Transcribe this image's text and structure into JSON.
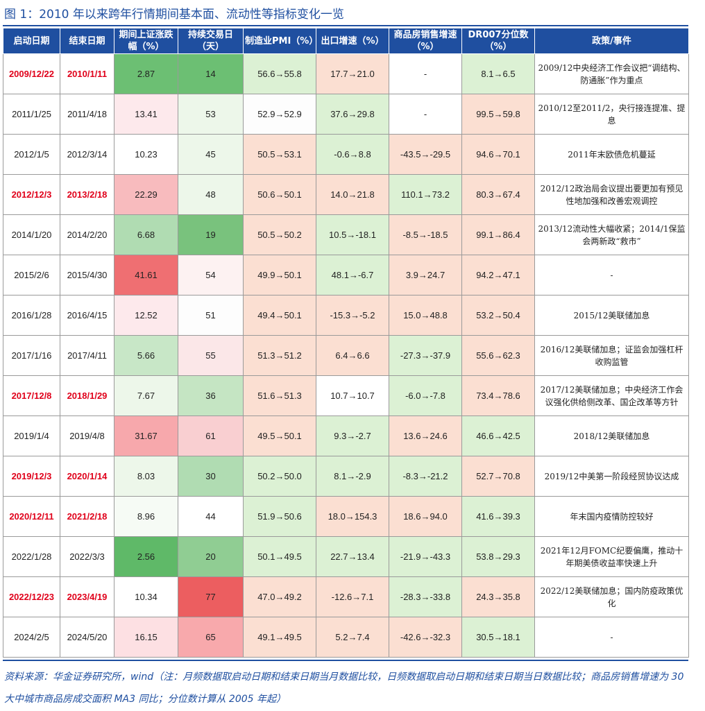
{
  "title": "图 1：2010 年以来跨年行情期间基本面、流动性等指标变化一览",
  "headers": [
    "启动日期",
    "结束日期",
    "期间上证涨跌幅（%）",
    "持续交易日（天）",
    "制造业PMI（%）",
    "出口增速（%）",
    "商品房销售增速（%）",
    "DR007分位数（%）",
    "政策/事件"
  ],
  "rows": [
    {
      "start": "2009/12/22",
      "end": "2010/1/11",
      "chg": "2.87",
      "days": "14",
      "pmi": "56.6→55.8",
      "export": "17.7→21.0",
      "house": "-",
      "dr007": "8.1→6.5",
      "policy": "2009/12中央经济工作会议把“调结构、防通胀”作为重点",
      "highlight": true
    },
    {
      "start": "2011/1/25",
      "end": "2011/4/18",
      "chg": "13.41",
      "days": "53",
      "pmi": "52.9→52.9",
      "export": "37.6→29.8",
      "house": "-",
      "dr007": "99.5→59.8",
      "policy": "2010/12至2011/2，央行接连提准、提息",
      "highlight": false
    },
    {
      "start": "2012/1/5",
      "end": "2012/3/14",
      "chg": "10.23",
      "days": "45",
      "pmi": "50.5→53.1",
      "export": "-0.6→8.8",
      "house": "-43.5→-29.5",
      "dr007": "94.6→70.1",
      "policy": "2011年末欧债危机蔓延",
      "highlight": false
    },
    {
      "start": "2012/12/3",
      "end": "2013/2/18",
      "chg": "22.29",
      "days": "48",
      "pmi": "50.6→50.1",
      "export": "14.0→21.8",
      "house": "110.1→73.2",
      "dr007": "80.3→67.4",
      "policy": "2012/12政治局会议提出要更加有预见性地加强和改善宏观调控",
      "highlight": true
    },
    {
      "start": "2014/1/20",
      "end": "2014/2/20",
      "chg": "6.68",
      "days": "19",
      "pmi": "50.5→50.2",
      "export": "10.5→-18.1",
      "house": "-8.5→-18.5",
      "dr007": "99.1→86.4",
      "policy": "2013/12流动性大幅收紧；2014/1保监会两新政“救市”",
      "highlight": false
    },
    {
      "start": "2015/2/6",
      "end": "2015/4/30",
      "chg": "41.61",
      "days": "54",
      "pmi": "49.9→50.1",
      "export": "48.1→-6.7",
      "house": "3.9→24.7",
      "dr007": "94.2→47.1",
      "policy": "-",
      "highlight": false
    },
    {
      "start": "2016/1/28",
      "end": "2016/4/15",
      "chg": "12.52",
      "days": "51",
      "pmi": "49.4→50.1",
      "export": "-15.3→-5.2",
      "house": "15.0→48.8",
      "dr007": "53.2→50.4",
      "policy": "2015/12美联储加息",
      "highlight": false
    },
    {
      "start": "2017/1/16",
      "end": "2017/4/11",
      "chg": "5.66",
      "days": "55",
      "pmi": "51.3→51.2",
      "export": "6.4→6.6",
      "house": "-27.3→-37.9",
      "dr007": "55.6→62.3",
      "policy": "2016/12美联储加息；证监会加强杠杆收购监管",
      "highlight": false
    },
    {
      "start": "2017/12/8",
      "end": "2018/1/29",
      "chg": "7.67",
      "days": "36",
      "pmi": "51.6→51.3",
      "export": "10.7→10.7",
      "house": "-6.0→-7.8",
      "dr007": "73.4→78.6",
      "policy": "2017/12美联储加息；中央经济工作会议强化供给侧改革、国企改革等方针",
      "highlight": true
    },
    {
      "start": "2019/1/4",
      "end": "2019/4/8",
      "chg": "31.67",
      "days": "61",
      "pmi": "49.5→50.1",
      "export": "9.3→-2.7",
      "house": "13.6→24.6",
      "dr007": "46.6→42.5",
      "policy": "2018/12美联储加息",
      "highlight": false
    },
    {
      "start": "2019/12/3",
      "end": "2020/1/14",
      "chg": "8.03",
      "days": "30",
      "pmi": "50.2→50.0",
      "export": "8.1→-2.9",
      "house": "-8.3→-21.2",
      "dr007": "52.7→70.8",
      "policy": "2019/12中美第一阶段经贸协议达成",
      "highlight": true
    },
    {
      "start": "2020/12/11",
      "end": "2021/2/18",
      "chg": "8.96",
      "days": "44",
      "pmi": "51.9→50.6",
      "export": "18.0→154.3",
      "house": "18.6→94.0",
      "dr007": "41.6→39.3",
      "policy": "年末国内疫情防控较好",
      "highlight": true
    },
    {
      "start": "2022/1/28",
      "end": "2022/3/3",
      "chg": "2.56",
      "days": "20",
      "pmi": "50.1→49.5",
      "export": "22.7→13.4",
      "house": "-21.9→-43.3",
      "dr007": "53.8→29.3",
      "policy": "2021年12月FOMC纪要偏鹰，推动十年期美债收益率快速上升",
      "highlight": false
    },
    {
      "start": "2022/12/23",
      "end": "2023/4/19",
      "chg": "10.34",
      "days": "77",
      "pmi": "47.0→49.2",
      "export": "-12.6→7.1",
      "house": "-28.3→-33.8",
      "dr007": "24.3→35.8",
      "policy": "2022/12美联储加息；国内防疫政策优化",
      "highlight": true
    },
    {
      "start": "2024/2/5",
      "end": "2024/5/20",
      "chg": "16.15",
      "days": "65",
      "pmi": "49.1→49.5",
      "export": "5.2→7.4",
      "house": "-42.6→-32.3",
      "dr007": "30.5→18.1",
      "policy": "-",
      "highlight": false
    }
  ],
  "cell_colors": [
    [
      "#6cbf73",
      "#6cbf73",
      "#dcf1d4",
      "#fbdfd2",
      "#ffffff",
      "#dcf1d4"
    ],
    [
      "#fde9ec",
      "#edf7ea",
      "#fdfdfd",
      "#dcf1d4",
      "#ffffff",
      "#fbdfd2"
    ],
    [
      "#ffffff",
      "#edf7ea",
      "#fbdfd2",
      "#dcf1d4",
      "#fbdfd2",
      "#fbdfd2"
    ],
    [
      "#f8bbbe",
      "#edf7ea",
      "#fbdfd2",
      "#fbdfd2",
      "#dcf1d4",
      "#fbdfd2"
    ],
    [
      "#b0dcb2",
      "#79c27d",
      "#fbdfd2",
      "#dcf1d4",
      "#fbdfd2",
      "#fbdfd2"
    ],
    [
      "#ef6f72",
      "#fdf2f2",
      "#fbdfd2",
      "#dcf1d4",
      "#fbdfd2",
      "#fbdfd2"
    ],
    [
      "#fde9ec",
      "#fdfdfd",
      "#fbdfd2",
      "#fbdfd2",
      "#fbdfd2",
      "#fbdfd2"
    ],
    [
      "#c8e7c7",
      "#fbe7e8",
      "#fbdfd2",
      "#fbdfd2",
      "#dcf1d4",
      "#fbdfd2"
    ],
    [
      "#edf7ea",
      "#c5e5c3",
      "#fbdfd2",
      "#ffffff",
      "#dcf1d4",
      "#fbdfd2"
    ],
    [
      "#f7a8ac",
      "#f9cfd1",
      "#fbdfd2",
      "#dcf1d4",
      "#fbdfd2",
      "#dcf1d4"
    ],
    [
      "#edf7ea",
      "#b0dcb2",
      "#dcf1d4",
      "#dcf1d4",
      "#dcf1d4",
      "#fbdfd2"
    ],
    [
      "#f6fbf5",
      "#ffffff",
      "#dcf1d4",
      "#fbdfd2",
      "#fbdfd2",
      "#dcf1d4"
    ],
    [
      "#5fb968",
      "#90cd93",
      "#dcf1d4",
      "#dcf1d4",
      "#dcf1d4",
      "#dcf1d4"
    ],
    [
      "#ffffff",
      "#ec5e60",
      "#fbdfd2",
      "#fbdfd2",
      "#dcf1d4",
      "#fbdfd2"
    ],
    [
      "#fde0e3",
      "#f8a9ac",
      "#fbdfd2",
      "#fbdfd2",
      "#fbdfd2",
      "#dcf1d4"
    ]
  ],
  "source_note": "资料来源：华金证券研究所，wind（注：月频数据取启动日期和结束日期当月数据比较，日频数据取启动日期和结束日期当日数据比较；商品房销售增速为 30 大中城市商品房成交面积 MA3 同比；分位数计算从 2005 年起）"
}
